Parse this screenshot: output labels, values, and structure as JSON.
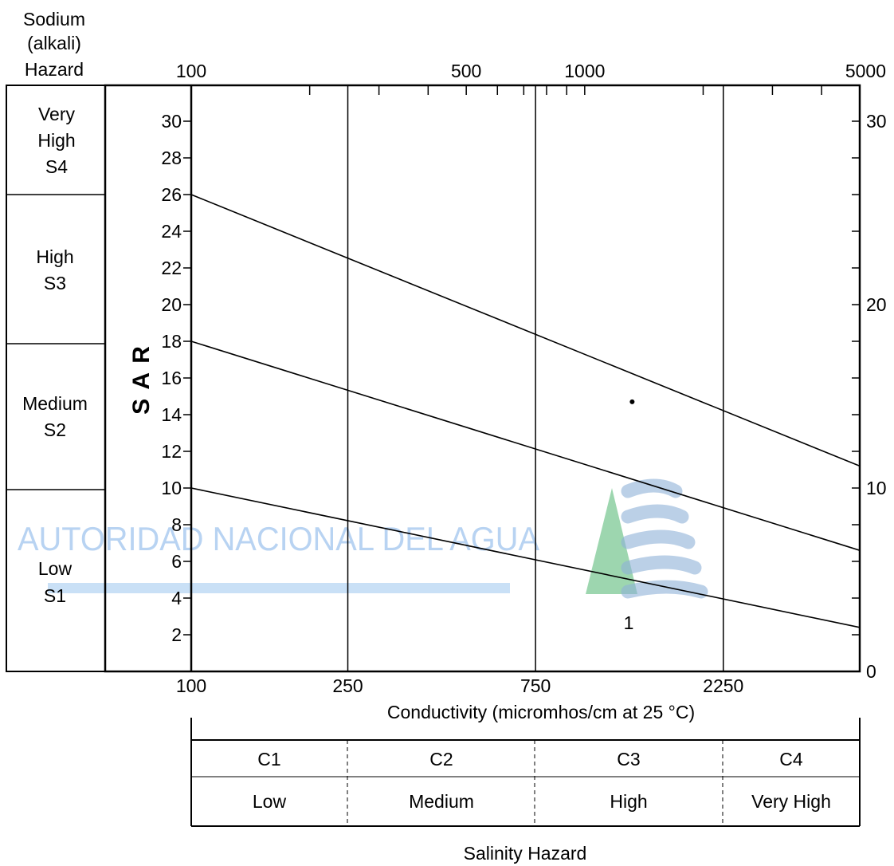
{
  "sodium_header": [
    "Sodium",
    "(alkali)",
    "Hazard"
  ],
  "sodium_classes": [
    {
      "lines": [
        "Very",
        "High",
        "S4"
      ]
    },
    {
      "lines": [
        "High",
        "S3"
      ]
    },
    {
      "lines": [
        "Medium",
        "S2"
      ]
    },
    {
      "lines": [
        "Low",
        "S1"
      ]
    }
  ],
  "salinity_classes": [
    {
      "code": "C1",
      "label": "Low"
    },
    {
      "code": "C2",
      "label": "Medium"
    },
    {
      "code": "C3",
      "label": "High"
    },
    {
      "code": "C4",
      "label": "Very High"
    }
  ],
  "salinity_title": "Salinity Hazard",
  "watermark": {
    "text": "AUTORIDAD NACIONAL DEL AGUA",
    "color_blue": "#7fb0e8",
    "color_green": "#5cba7a"
  },
  "chart_data": {
    "type": "line",
    "title": "",
    "xlabel": "Conductivity (micromhos/cm at 25 °C)",
    "ylabel": "S A R",
    "x_scale": "log",
    "xlim": [
      100,
      5000
    ],
    "ylim": [
      0,
      30
    ],
    "top_x_ticks": [
      100,
      500,
      1000,
      5000
    ],
    "bottom_x_ticks": [
      100,
      250,
      750,
      2250
    ],
    "y_ticks_left": [
      2,
      4,
      6,
      8,
      10,
      12,
      14,
      16,
      18,
      20,
      22,
      24,
      26,
      28,
      30
    ],
    "y_ticks_right": [
      0,
      10,
      20,
      30
    ],
    "class_boundaries": [
      250,
      750,
      2250
    ],
    "grid": false,
    "series": [
      {
        "points": [
          [
            100,
            10
          ],
          [
            5000,
            2.4
          ]
        ]
      },
      {
        "points": [
          [
            100,
            18
          ],
          [
            5000,
            6.6
          ]
        ]
      },
      {
        "points": [
          [
            100,
            26
          ],
          [
            5000,
            11.2
          ]
        ]
      }
    ],
    "samples": [
      {
        "x": 1320,
        "y": 14.7,
        "label": "1"
      }
    ]
  }
}
